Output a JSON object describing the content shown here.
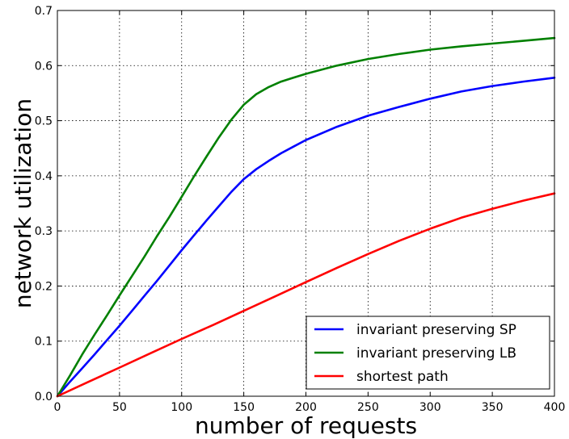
{
  "chart_data": {
    "type": "line",
    "title": "",
    "xlabel": "number of requests",
    "ylabel": "network utilization",
    "xlim": [
      0,
      400
    ],
    "ylim": [
      0.0,
      0.7
    ],
    "xticks": [
      0,
      50,
      100,
      150,
      200,
      250,
      300,
      350,
      400
    ],
    "yticks": [
      0.0,
      0.1,
      0.2,
      0.3,
      0.4,
      0.5,
      0.6,
      0.7
    ],
    "x_tick_labels": [
      "0",
      "50",
      "100",
      "150",
      "200",
      "250",
      "300",
      "350",
      "400"
    ],
    "y_tick_labels": [
      "0.0",
      "0.1",
      "0.2",
      "0.3",
      "0.4",
      "0.5",
      "0.6",
      "0.7"
    ],
    "grid": true,
    "legend_position": "lower-right",
    "series": [
      {
        "name": "invariant preserving SP",
        "color": "#0000ff",
        "x": [
          0,
          10,
          20,
          30,
          40,
          50,
          60,
          70,
          80,
          90,
          100,
          110,
          120,
          130,
          140,
          150,
          160,
          170,
          180,
          190,
          200,
          225,
          250,
          275,
          300,
          325,
          350,
          375,
          400
        ],
        "y": [
          0.0,
          0.026,
          0.051,
          0.076,
          0.102,
          0.128,
          0.155,
          0.182,
          0.209,
          0.237,
          0.265,
          0.292,
          0.319,
          0.345,
          0.371,
          0.394,
          0.412,
          0.427,
          0.441,
          0.453,
          0.465,
          0.489,
          0.509,
          0.525,
          0.54,
          0.553,
          0.563,
          0.571,
          0.578
        ]
      },
      {
        "name": "invariant preserving LB",
        "color": "#008000",
        "x": [
          0,
          10,
          20,
          30,
          40,
          50,
          60,
          70,
          80,
          90,
          100,
          110,
          120,
          130,
          140,
          150,
          160,
          170,
          180,
          190,
          200,
          225,
          250,
          275,
          300,
          325,
          350,
          375,
          400
        ],
        "y": [
          0.0,
          0.037,
          0.076,
          0.112,
          0.147,
          0.183,
          0.218,
          0.253,
          0.29,
          0.325,
          0.362,
          0.399,
          0.435,
          0.47,
          0.502,
          0.529,
          0.548,
          0.561,
          0.571,
          0.578,
          0.585,
          0.6,
          0.612,
          0.621,
          0.629,
          0.635,
          0.64,
          0.645,
          0.65
        ]
      },
      {
        "name": "shortest path",
        "color": "#ff0000",
        "x": [
          0,
          25,
          50,
          75,
          100,
          125,
          150,
          175,
          200,
          225,
          250,
          275,
          300,
          325,
          350,
          375,
          400
        ],
        "y": [
          0.0,
          0.026,
          0.052,
          0.078,
          0.104,
          0.129,
          0.155,
          0.181,
          0.207,
          0.233,
          0.258,
          0.282,
          0.304,
          0.324,
          0.34,
          0.355,
          0.368
        ]
      }
    ]
  }
}
